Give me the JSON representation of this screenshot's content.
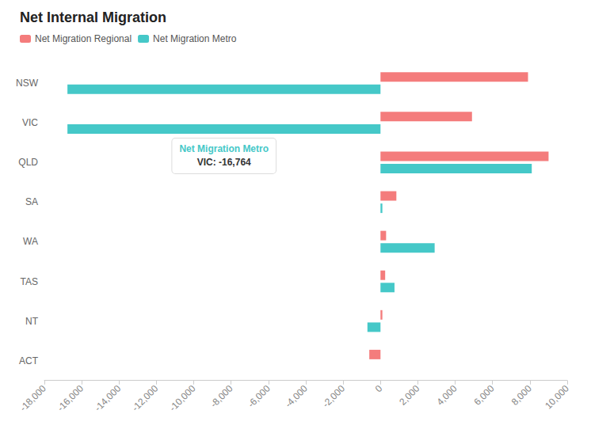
{
  "chart_data": {
    "type": "bar",
    "orientation": "horizontal",
    "title": "Net Internal Migration",
    "categories": [
      "NSW",
      "VIC",
      "QLD",
      "SA",
      "WA",
      "TAS",
      "NT",
      "ACT"
    ],
    "series": [
      {
        "name": "Net Migration Regional",
        "color": "#F47C7C",
        "values": [
          7900,
          4900,
          9000,
          850,
          300,
          250,
          100,
          -600
        ]
      },
      {
        "name": "Net Migration Metro",
        "color": "#45C8C8",
        "values": [
          -16764,
          -16764,
          8100,
          100,
          2900,
          750,
          -700,
          0
        ]
      }
    ],
    "xlim": [
      -18000,
      10000
    ],
    "xticks": [
      {
        "value": -18000,
        "label": "-18,000"
      },
      {
        "value": -16000,
        "label": "-16,000"
      },
      {
        "value": -14000,
        "label": "-14,000"
      },
      {
        "value": -12000,
        "label": "-12,000"
      },
      {
        "value": -10000,
        "label": "-10,000"
      },
      {
        "value": -8000,
        "label": "-8,000"
      },
      {
        "value": -6000,
        "label": "-6,000"
      },
      {
        "value": -4000,
        "label": "-4,000"
      },
      {
        "value": -2000,
        "label": "-2,000"
      },
      0,
      {
        "value": 2000,
        "label": "2,000"
      },
      {
        "value": 4000,
        "label": "4,000"
      },
      {
        "value": 6000,
        "label": "6,000"
      },
      {
        "value": 8000,
        "label": "8,000"
      },
      {
        "value": 10000,
        "label": "10,000"
      }
    ],
    "grid": false,
    "legend": "upper left",
    "annotations": [
      {
        "text": [
          "Net Migration Metro",
          "VIC: -16,764"
        ],
        "category": "VIC",
        "series": "Net Migration Metro"
      }
    ]
  }
}
